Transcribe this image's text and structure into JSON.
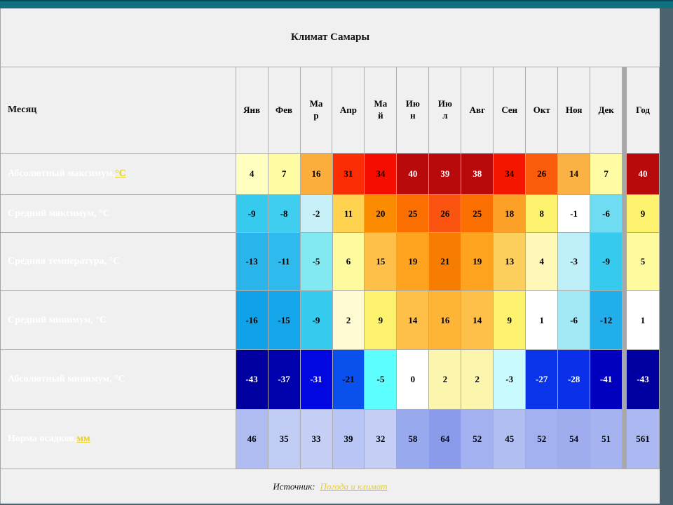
{
  "title": "Климат Самары",
  "header": {
    "month_label": "Месяц"
  },
  "chart_data": {
    "type": "table",
    "title": "Климат Самары",
    "columns": [
      "Янв",
      "Фев",
      "Мар",
      "Апр",
      "Май",
      "Июн",
      "Июл",
      "Авг",
      "Сен",
      "Окт",
      "Ноя",
      "Дек",
      "Год"
    ],
    "series": [
      {
        "name": "Абсолютный максимум, °C",
        "values": [
          4,
          7,
          16,
          31,
          34,
          40,
          39,
          38,
          34,
          26,
          14,
          7,
          40
        ]
      },
      {
        "name": "Средний максимум, °C",
        "values": [
          -9,
          -8,
          -2,
          11,
          20,
          25,
          26,
          25,
          18,
          8,
          -1,
          -6,
          9
        ]
      },
      {
        "name": "Средняя температура, °C",
        "values": [
          -13,
          -11,
          -5,
          6,
          15,
          19,
          21,
          19,
          13,
          4,
          -3,
          -9,
          5
        ]
      },
      {
        "name": "Средний минимум, °C",
        "values": [
          -16,
          -15,
          -9,
          2,
          9,
          14,
          16,
          14,
          9,
          1,
          -6,
          -12,
          1
        ]
      },
      {
        "name": "Абсолютный минимум, °C",
        "values": [
          -43,
          -37,
          -31,
          -21,
          -5,
          0,
          2,
          2,
          -3,
          -27,
          -28,
          -41,
          -43
        ]
      },
      {
        "name": "Норма осадков, мм",
        "values": [
          46,
          35,
          33,
          39,
          32,
          58,
          64,
          52,
          45,
          52,
          54,
          51,
          561
        ]
      }
    ]
  },
  "rows": [
    {
      "label": "Абсолютный максимум, ",
      "link": "°C",
      "cells": [
        {
          "bg": "#FFFFC0"
        },
        {
          "bg": "#FFFCA4"
        },
        {
          "bg": "#FBAE3C"
        },
        {
          "bg": "#FB2D04"
        },
        {
          "bg": "#F50D00"
        },
        {
          "bg": "#B80A0A",
          "fg": "#FFFFFF"
        },
        {
          "bg": "#B80A0A",
          "fg": "#FFFFFF"
        },
        {
          "bg": "#B80A0A",
          "fg": "#FFFFFF"
        },
        {
          "bg": "#F51600"
        },
        {
          "bg": "#FB5C0C"
        },
        {
          "bg": "#FBB244"
        },
        {
          "bg": "#FFFCA4"
        },
        {
          "bg": "#B80A0A",
          "fg": "#FFFFFF"
        }
      ]
    },
    {
      "label": "Средний максимум, °C",
      "cells": [
        {
          "bg": "#35CAEE"
        },
        {
          "bg": "#3FCEEF"
        },
        {
          "bg": "#C8F0F8"
        },
        {
          "bg": "#FFD24F"
        },
        {
          "bg": "#FB8B00"
        },
        {
          "bg": "#FB6E00"
        },
        {
          "bg": "#FA5410"
        },
        {
          "bg": "#FB6E00"
        },
        {
          "bg": "#FCA028"
        },
        {
          "bg": "#FCF26D"
        },
        {
          "bg": "#FFFFFF"
        },
        {
          "bg": "#6FDCF2"
        },
        {
          "bg": "#FCF26D"
        }
      ]
    },
    {
      "label": "Средняя температура, °C",
      "cells": [
        {
          "bg": "#29B5EC"
        },
        {
          "bg": "#2FBAEE"
        },
        {
          "bg": "#82E8F2"
        },
        {
          "bg": "#FEFA9E"
        },
        {
          "bg": "#FFC04A"
        },
        {
          "bg": "#FFA21E"
        },
        {
          "bg": "#F67D00"
        },
        {
          "bg": "#FFA21E"
        },
        {
          "bg": "#FCCF5C"
        },
        {
          "bg": "#FFF8B8"
        },
        {
          "bg": "#BEEFF8"
        },
        {
          "bg": "#35CAEE"
        },
        {
          "bg": "#FEFA9E"
        }
      ]
    },
    {
      "label": "Средний минимум, °C",
      "cells": [
        {
          "bg": "#0FA2E8"
        },
        {
          "bg": "#14A6EA"
        },
        {
          "bg": "#35CAEE"
        },
        {
          "bg": "#FFFBD2"
        },
        {
          "bg": "#FCF26D"
        },
        {
          "bg": "#FFC04A"
        },
        {
          "bg": "#FEB437"
        },
        {
          "bg": "#FFC04A"
        },
        {
          "bg": "#FCF26D"
        },
        {
          "bg": "#FFFFFF"
        },
        {
          "bg": "#A2E9F5"
        },
        {
          "bg": "#22AEEA"
        },
        {
          "bg": "#FFFFFF"
        }
      ]
    },
    {
      "label": "Абсолютный минимум, °C",
      "cells": [
        {
          "bg": "#0000A0",
          "fg": "#FFFFFF"
        },
        {
          "bg": "#0000AC",
          "fg": "#FFFFFF"
        },
        {
          "bg": "#0007E0",
          "fg": "#FFFFFF"
        },
        {
          "bg": "#0A50EC"
        },
        {
          "bg": "#5CFEFE"
        },
        {
          "bg": "#FFFFFF"
        },
        {
          "bg": "#FBF5AE"
        },
        {
          "bg": "#FBF5AE"
        },
        {
          "bg": "#C9FAFD"
        },
        {
          "bg": "#0A34EA",
          "fg": "#FFFFFF"
        },
        {
          "bg": "#0A30EA",
          "fg": "#FFFFFF"
        },
        {
          "bg": "#0000BE",
          "fg": "#FFFFFF"
        },
        {
          "bg": "#0000A0",
          "fg": "#FFFFFF"
        }
      ]
    },
    {
      "label": "Норма осадков, ",
      "link": "мм",
      "cells": [
        {
          "bg": "#AFBCF2"
        },
        {
          "bg": "#C1CCF5"
        },
        {
          "bg": "#C5CFF6"
        },
        {
          "bg": "#B9C5F4"
        },
        {
          "bg": "#C5CFF6"
        },
        {
          "bg": "#99A9EE"
        },
        {
          "bg": "#8B9BEC"
        },
        {
          "bg": "#A3B1F0"
        },
        {
          "bg": "#B1BEF2"
        },
        {
          "bg": "#A3B1F0"
        },
        {
          "bg": "#9FADEF"
        },
        {
          "bg": "#A5B3F0"
        },
        {
          "bg": "#ABB8F1"
        }
      ]
    }
  ],
  "footer": {
    "label": "Источник:",
    "link": "Погода и климат"
  },
  "colors": {
    "accent_top": "#10707F",
    "background": "#4A636C",
    "link_gold": "#E5CE30"
  }
}
